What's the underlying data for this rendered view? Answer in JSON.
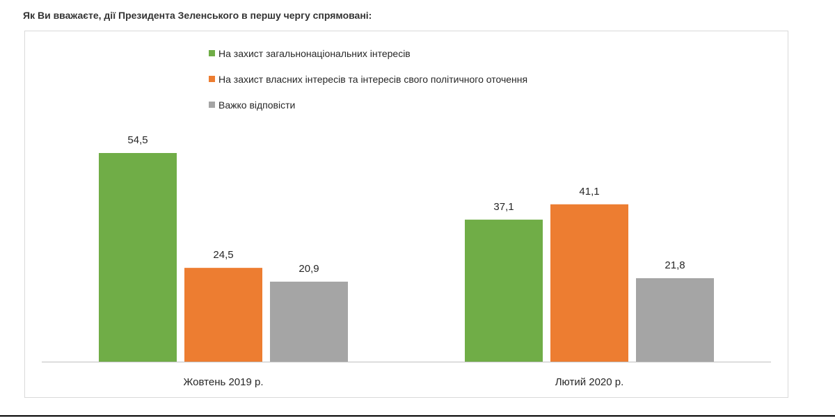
{
  "question": "Як Ви вважаєте, дії Президента Зеленського в першу чергу спрямовані:",
  "chart_data": {
    "type": "bar",
    "categories": [
      "Жовтень 2019 р.",
      "Лютий 2020 р."
    ],
    "series": [
      {
        "name": "На захист загальнонаціональних інтересів",
        "values": [
          54.5,
          37.1
        ],
        "labels": [
          "54,5",
          "37,1"
        ],
        "color": "#70ad47"
      },
      {
        "name": "На захист власних інтересів та інтересів свого політичного оточення",
        "values": [
          24.5,
          41.1
        ],
        "labels": [
          "24,5",
          "41,1"
        ],
        "color": "#ed7d31"
      },
      {
        "name": "Важко відповісти",
        "values": [
          20.9,
          21.8
        ],
        "labels": [
          "20,9",
          "21,8"
        ],
        "color": "#a5a5a5"
      }
    ],
    "ylim": [
      0,
      60
    ],
    "legend_position": "top-center",
    "grid": false
  }
}
